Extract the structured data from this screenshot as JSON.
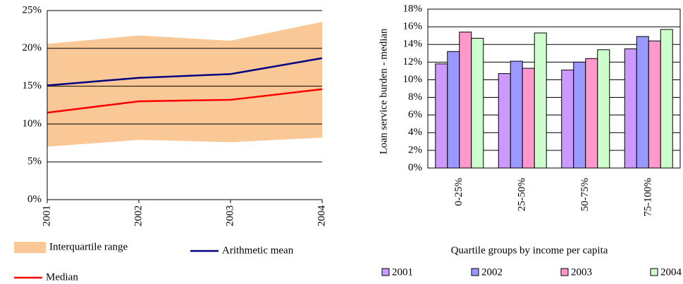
{
  "chart_data": [
    {
      "type": "line",
      "x": [
        "2001",
        "2002",
        "2003",
        "2004"
      ],
      "ylim": [
        0,
        25
      ],
      "yticks": [
        {
          "value": 0,
          "label": "0%"
        },
        {
          "value": 5,
          "label": "5%"
        },
        {
          "value": 10,
          "label": "10%"
        },
        {
          "value": 15,
          "label": "15%"
        },
        {
          "value": 20,
          "label": "20%"
        },
        {
          "value": 25,
          "label": "25%"
        }
      ],
      "grid": true,
      "series": [
        {
          "name": "Interquartile range",
          "color": "#fac896",
          "low": [
            7.0,
            7.9,
            7.6,
            8.2
          ],
          "high": [
            20.6,
            21.7,
            21.0,
            23.5
          ]
        },
        {
          "name": "Arithmetic mean",
          "color": "#000080",
          "values": [
            15.1,
            16.1,
            16.6,
            18.7
          ]
        },
        {
          "name": "Median",
          "color": "#ff0000",
          "values": [
            11.5,
            13.0,
            13.2,
            14.6
          ]
        }
      ]
    },
    {
      "type": "bar",
      "categories": [
        "0-25%",
        "25-50%",
        "50-75%",
        "75-100%"
      ],
      "y_label": "Loan service burden - median",
      "x_label": "Quartile groups by income per capita",
      "ylim": [
        0,
        18
      ],
      "yticks": [
        {
          "value": 0,
          "label": "0%"
        },
        {
          "value": 2,
          "label": "2%"
        },
        {
          "value": 4,
          "label": "4%"
        },
        {
          "value": 6,
          "label": "6%"
        },
        {
          "value": 8,
          "label": "8%"
        },
        {
          "value": 10,
          "label": "10%"
        },
        {
          "value": 12,
          "label": "12%"
        },
        {
          "value": 14,
          "label": "14%"
        },
        {
          "value": 16,
          "label": "16%"
        },
        {
          "value": 18,
          "label": "18%"
        }
      ],
      "grid": true,
      "series": [
        {
          "name": "2001",
          "color": "#cc99ff",
          "values": [
            11.8,
            10.7,
            11.1,
            13.5
          ]
        },
        {
          "name": "2002",
          "color": "#9999ff",
          "values": [
            13.2,
            12.1,
            12.0,
            14.9
          ]
        },
        {
          "name": "2003",
          "color": "#ff99cc",
          "values": [
            15.4,
            11.3,
            12.4,
            14.4
          ]
        },
        {
          "name": "2004",
          "color": "#ccffcc",
          "values": [
            14.7,
            15.3,
            13.4,
            15.7
          ]
        }
      ]
    }
  ]
}
